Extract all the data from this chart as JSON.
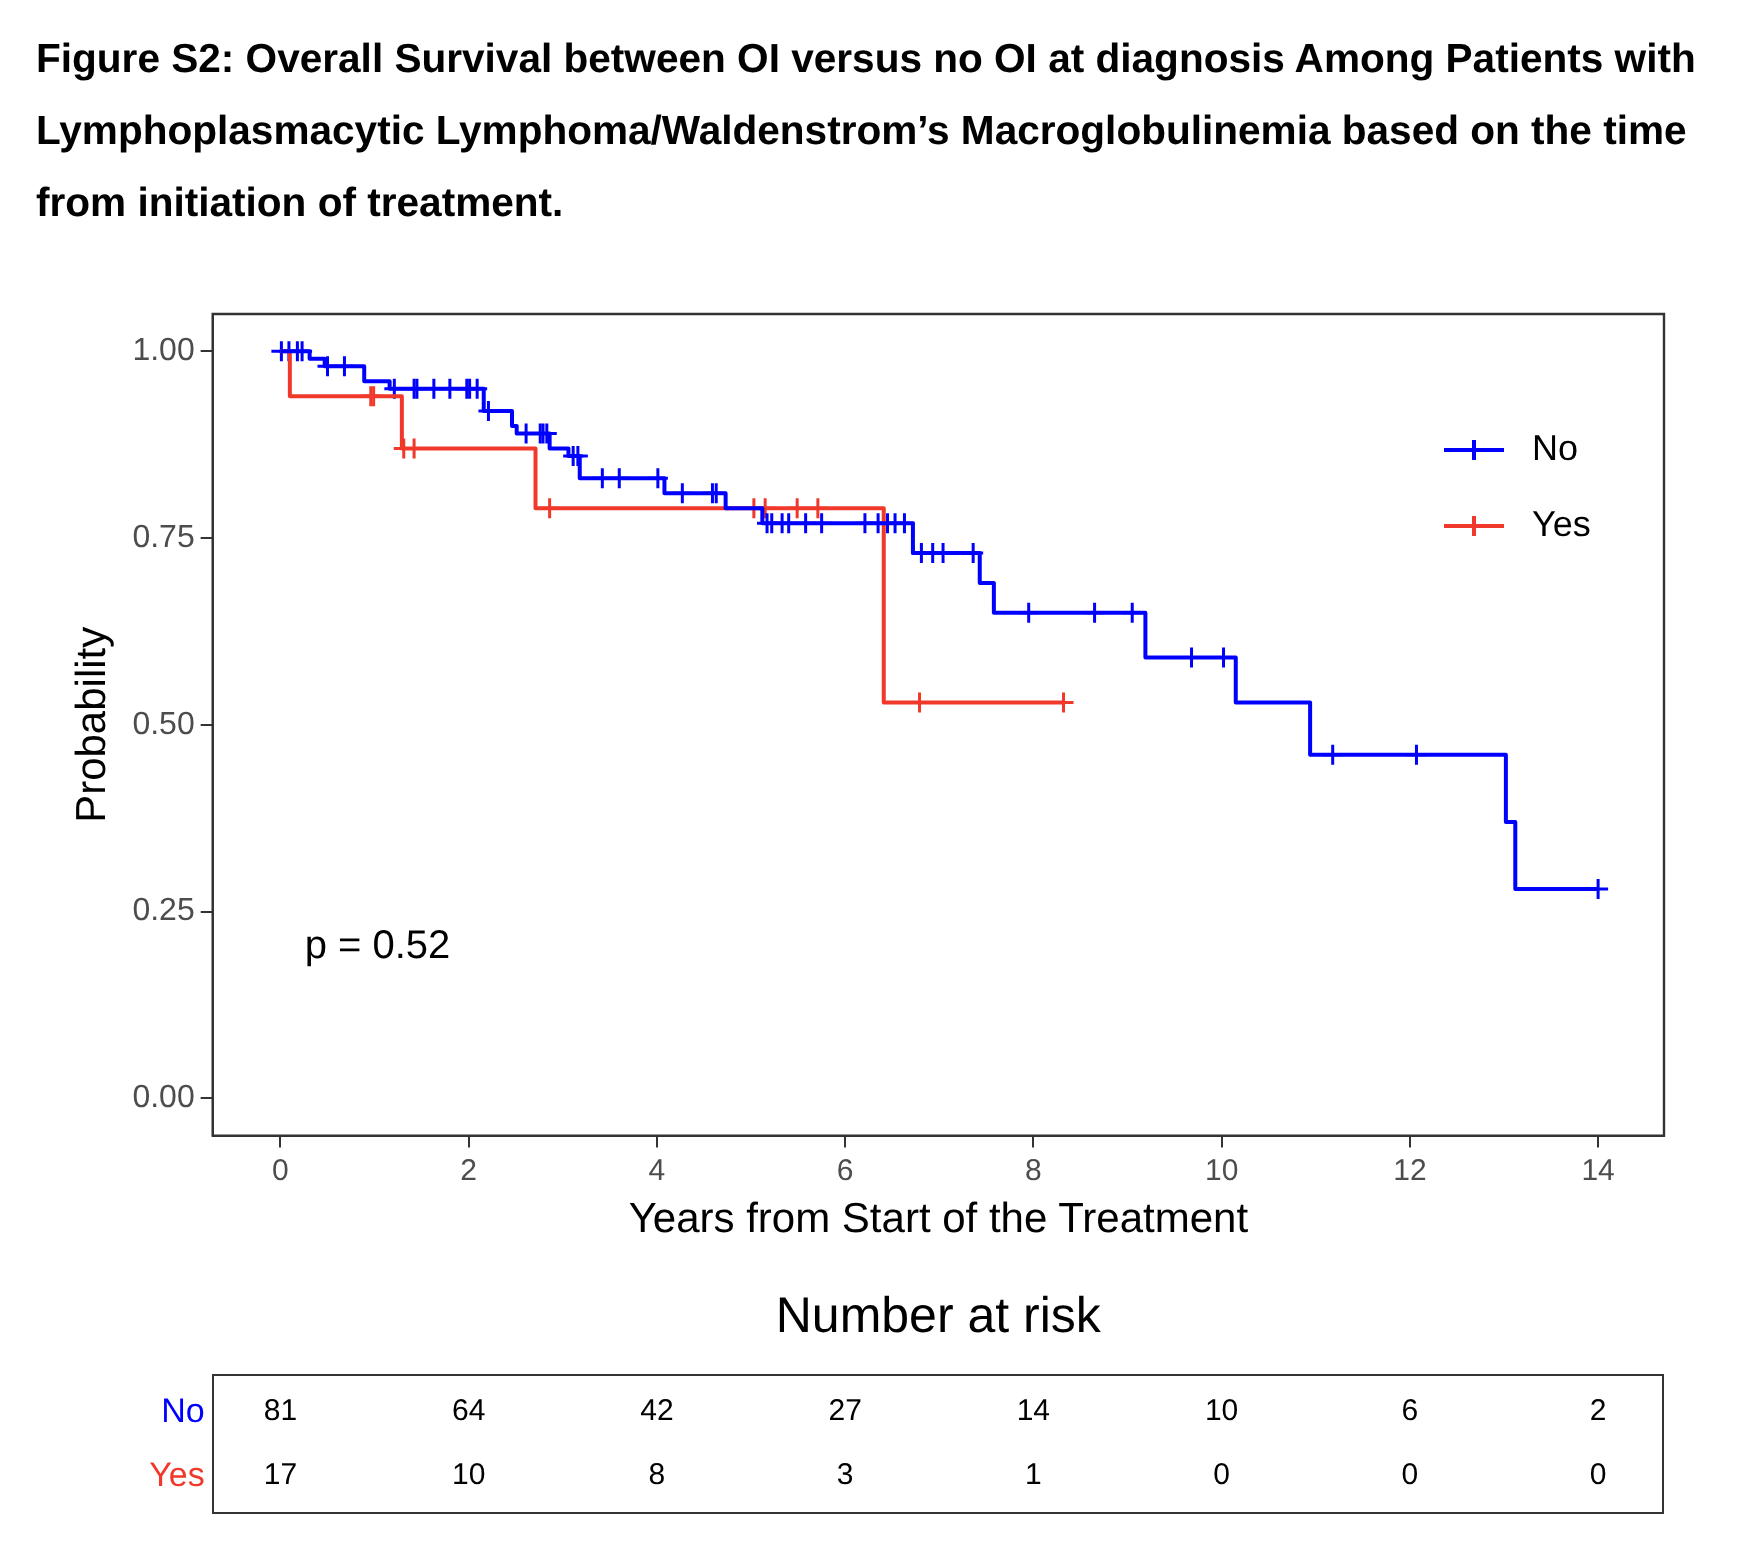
{
  "chart_data": {
    "type": "step",
    "title": "Figure S2: Overall Survival between OI versus no OI at diagnosis Among Patients with Lymphoplasmacytic Lymphoma/Waldenstrom’s Macroglobulinemia based on the time from initiation of treatment.",
    "xlabel": "Years from Start of the Treatment",
    "ylabel": "Probability",
    "xlim": [
      -0.72,
      14.7
    ],
    "xticks": [
      0,
      2,
      4,
      6,
      8,
      10,
      12,
      14
    ],
    "ylim": [
      -0.05,
      1.05
    ],
    "yticks": [
      {
        "value": 0,
        "label": "0.00"
      },
      {
        "value": 0.25,
        "label": "0.25"
      },
      {
        "value": 0.5,
        "label": "0.50"
      },
      {
        "value": 0.75,
        "label": "0.75"
      },
      {
        "value": 1,
        "label": "1.00"
      }
    ],
    "grid": false,
    "legend": "top right",
    "line_style": "solid",
    "annotations": [
      "p = 0.52",
      "Number at risk",
      "No",
      "81",
      "64",
      "42",
      "27",
      "14",
      "10",
      "6",
      "2",
      "Yes",
      "17",
      "10",
      "8",
      "3",
      "1",
      "0",
      "0",
      "0"
    ],
    "series": [
      {
        "name": "No",
        "marker": "none",
        "color": "#0000ff",
        "x": [
          0,
          0.31,
          0.47,
          0.89,
          1.16,
          2.16,
          2.46,
          2.51,
          2.86,
          3.06,
          3.18,
          4.08,
          4.73,
          5.12,
          6.72,
          7.43,
          7.58,
          9.19,
          10.15,
          10.94,
          13.02,
          13.12,
          14
        ],
        "values": [
          1.0,
          0.99,
          0.98,
          0.96,
          0.95,
          0.92,
          0.9,
          0.89,
          0.87,
          0.86,
          0.83,
          0.81,
          0.79,
          0.77,
          0.73,
          0.69,
          0.65,
          0.59,
          0.53,
          0.46,
          0.37,
          0.28,
          0.28
        ]
      },
      {
        "name": "Yes",
        "marker": "none",
        "color": "#f0392b",
        "x": [
          0,
          0.1,
          1.29,
          2.71,
          6.41,
          8.32
        ],
        "values": [
          1.0,
          0.94,
          0.87,
          0.79,
          0.53,
          0.53
        ]
      },
      {
        "type": "scatter",
        "marker": "cross",
        "color": "#0000ff",
        "x": [
          0.01,
          0.09,
          0.18,
          0.23,
          0.5,
          0.68,
          1.21,
          1.42,
          1.45,
          1.63,
          1.8,
          1.98,
          2.01,
          2.09,
          2.21,
          2.61,
          2.76,
          2.79,
          2.83,
          3.11,
          3.16,
          3.42,
          3.6,
          4.01,
          4.27,
          4.59,
          4.63,
          5.17,
          5.22,
          5.33,
          5.4,
          5.58,
          5.75,
          6.21,
          6.35,
          6.45,
          6.53,
          6.63,
          6.81,
          6.93,
          7.04,
          7.36,
          7.95,
          8.65,
          9.05,
          9.68,
          10.02,
          11.18,
          12.07,
          14
        ],
        "values": [
          1.0,
          1.0,
          1.0,
          1.0,
          0.98,
          0.98,
          0.95,
          0.95,
          0.95,
          0.95,
          0.95,
          0.95,
          0.95,
          0.95,
          0.92,
          0.89,
          0.89,
          0.89,
          0.89,
          0.86,
          0.86,
          0.83,
          0.83,
          0.83,
          0.81,
          0.81,
          0.81,
          0.77,
          0.77,
          0.77,
          0.77,
          0.77,
          0.77,
          0.77,
          0.77,
          0.77,
          0.77,
          0.77,
          0.73,
          0.73,
          0.73,
          0.73,
          0.65,
          0.65,
          0.65,
          0.59,
          0.59,
          0.46,
          0.46,
          0.28
        ]
      },
      {
        "type": "scatter",
        "marker": "cross",
        "color": "#f0392b",
        "x": [
          0.96,
          0.99,
          1.31,
          1.42,
          2.86,
          5.03,
          5.15,
          5.49,
          5.71,
          6.79,
          8.32
        ],
        "values": [
          0.94,
          0.94,
          0.87,
          0.87,
          0.79,
          0.79,
          0.79,
          0.79,
          0.79,
          0.53,
          0.53
        ]
      }
    ]
  }
}
